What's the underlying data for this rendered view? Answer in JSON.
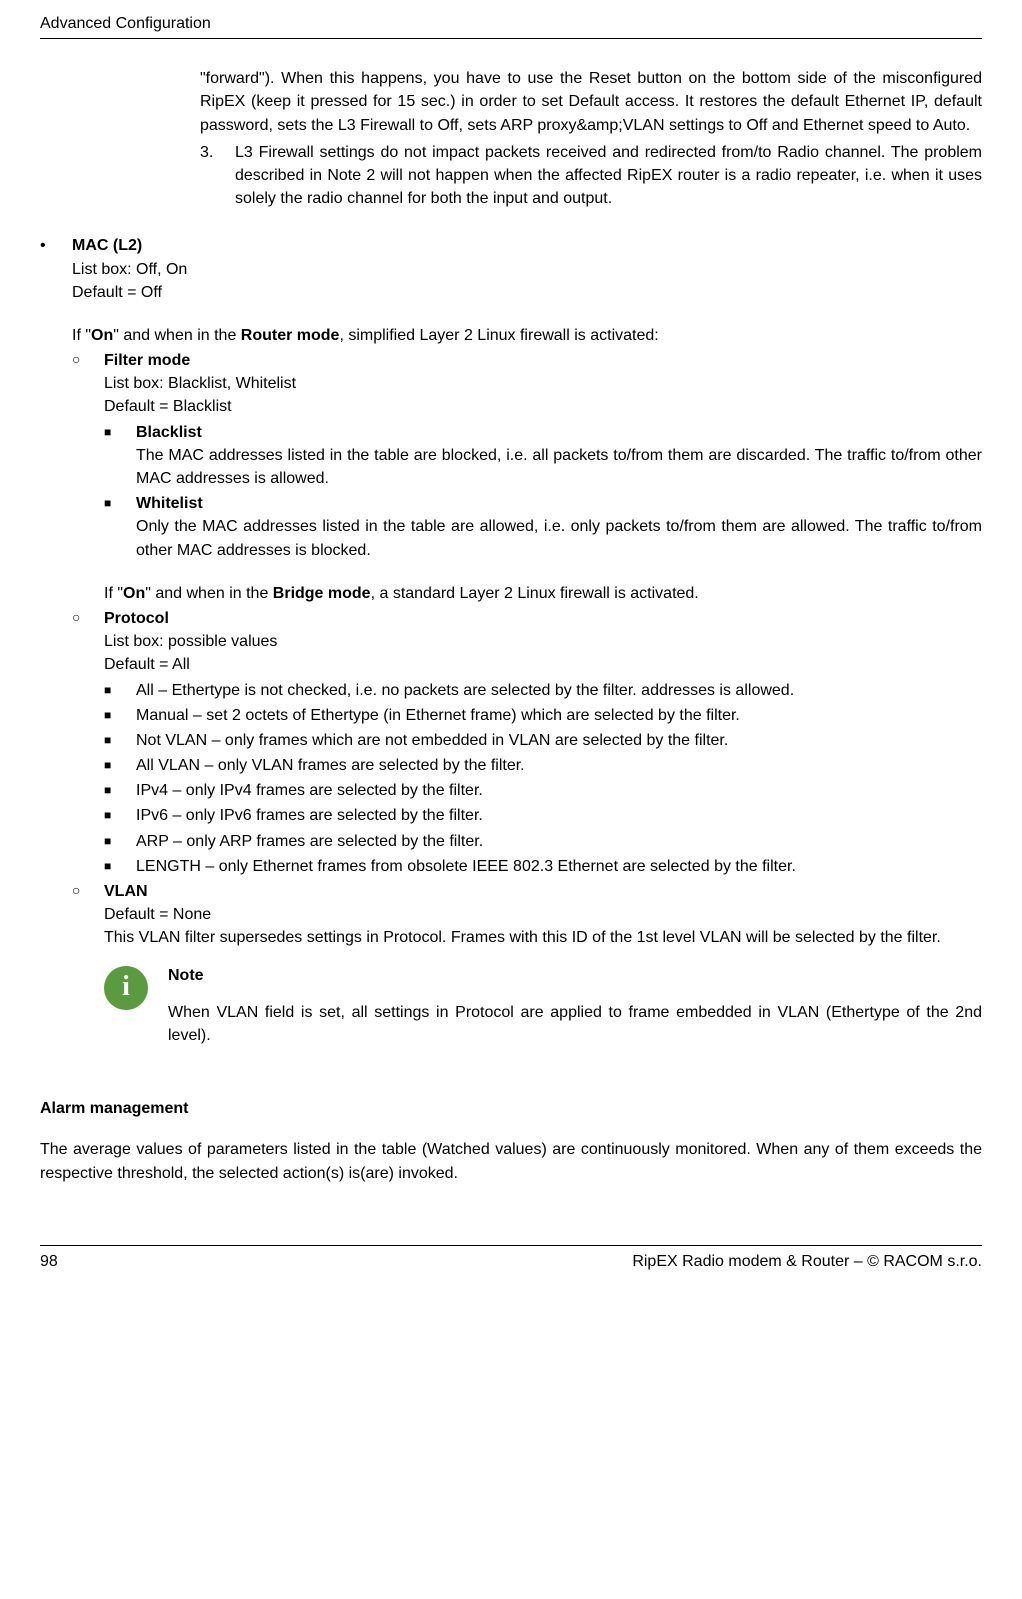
{
  "header": {
    "title": "Advanced Configuration"
  },
  "continued": {
    "para1": "\"forward\"). When this happens, you have to use the Reset button on the bottom side of the misconfigured RipEX (keep it pressed for 15 sec.) in order to set Default access. It restores the default Ethernet IP, default password, sets the L3 Firewall to Off, sets ARP proxy&amp;VLAN settings to Off and Ethernet speed to Auto.",
    "item3_num": "3.",
    "item3_text": "L3 Firewall settings do not impact packets received and redirected from/to Radio channel. The problem described in Note 2 will not happen when the affected RipEX router is a radio repeater, i.e. when it uses solely the radio channel for both the input and output."
  },
  "mac": {
    "title": "MAC (L2)",
    "listbox": "List box: Off, On",
    "default": "Default = Off",
    "intro_prefix": "If \"",
    "intro_on": "On",
    "intro_mid1": "\" and when in the ",
    "intro_router": "Router mode",
    "intro_suffix1": ", simplified Layer 2 Linux firewall is activated:",
    "filter": {
      "title": "Filter mode",
      "listbox": "List box: Blacklist, Whitelist",
      "default": "Default = Blacklist",
      "blacklist_title": "Blacklist",
      "blacklist_text": "The MAC addresses listed in the table are blocked, i.e. all packets to/from them are discarded. The traffic to/from other MAC addresses is allowed.",
      "whitelist_title": "Whitelist",
      "whitelist_text": "Only the MAC addresses listed in the table are allowed, i.e. only packets to/from them are allowed. The traffic to/from other MAC addresses is blocked."
    },
    "bridge_prefix": "If \"",
    "bridge_on": "On",
    "bridge_mid": "\" and when in the ",
    "bridge_mode": "Bridge mode",
    "bridge_suffix": ", a standard Layer 2 Linux firewall is activated.",
    "protocol": {
      "title": "Protocol",
      "listbox": "List box: possible values",
      "default": "Default = All",
      "items": {
        "all": "All – Ethertype is not checked, i.e. no packets are selected by the filter. addresses is allowed.",
        "manual": "Manual – set 2 octets of Ethertype (in Ethernet frame) which are selected by the filter.",
        "notvlan": "Not VLAN – only frames which are not embedded in VLAN are selected by the filter.",
        "allvlan": "All VLAN – only VLAN frames are selected by the filter.",
        "ipv4": "IPv4 – only IPv4 frames are selected by the filter.",
        "ipv6": "IPv6 – only IPv6 frames are selected by the filter.",
        "arp": "ARP – only ARP frames are selected by the filter.",
        "length": "LENGTH – only Ethernet frames from obsolete IEEE 802.3 Ethernet are selected by the filter."
      }
    },
    "vlan": {
      "title": "VLAN",
      "default": "Default = None",
      "text": "This VLAN filter supersedes settings in Protocol. Frames with this ID of the 1st level VLAN will be selected by the filter."
    },
    "note": {
      "icon_char": "i",
      "title": "Note",
      "text": "When VLAN field is set, all settings in Protocol are applied to frame embedded in VLAN (Ethertype of the 2nd level)."
    }
  },
  "alarm": {
    "heading": "Alarm management",
    "text": "The average values of parameters listed in the table (Watched values) are continuously monitored. When any of them exceeds the respective threshold, the selected action(s) is(are) invoked."
  },
  "footer": {
    "page": "98",
    "right": "RipEX Radio modem & Router – © RACOM s.r.o."
  },
  "bullets": {
    "dot": "•",
    "circle": "○",
    "square": "■"
  }
}
